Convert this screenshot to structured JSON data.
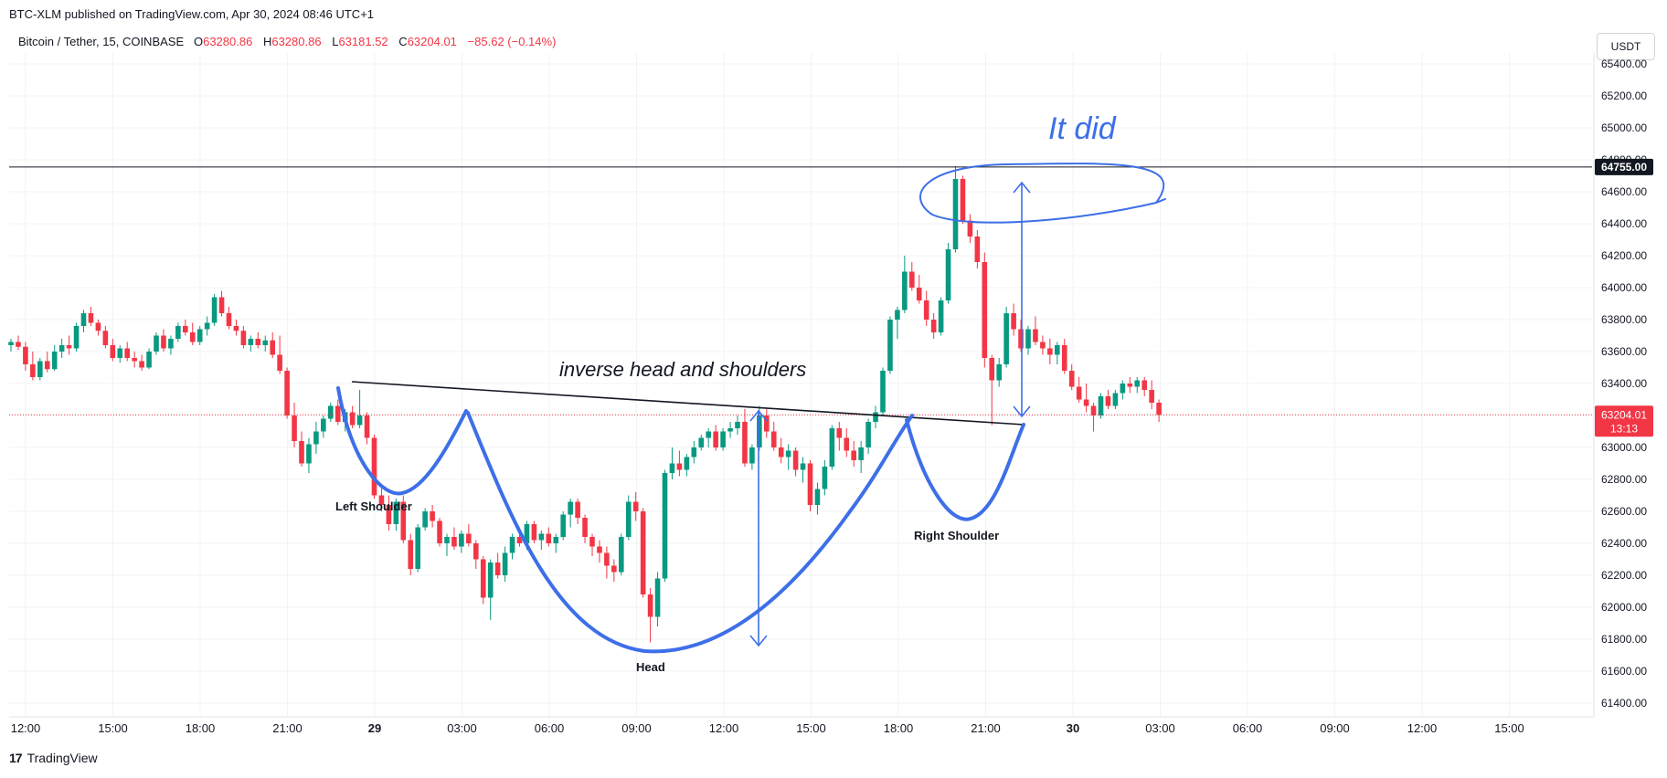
{
  "header": {
    "published": "BTC-XLM published on TradingView.com, Apr 30, 2024 08:46 UTC+1"
  },
  "symbol": {
    "name": "Bitcoin / Tether, 15, COINBASE",
    "open_label": "O",
    "open": "63280.86",
    "high_label": "H",
    "high": "63280.86",
    "low_label": "L",
    "low": "63181.52",
    "close_label": "C",
    "close": "63204.01",
    "change": "−85.62 (−0.14%)"
  },
  "currency_button": "USDT",
  "footer": {
    "brand": "TradingView",
    "logo": "17"
  },
  "colors": {
    "up": "#089981",
    "down": "#f23645",
    "drawing": "#3d6fe8",
    "trendline": "#131722",
    "price_tag": "#f23645"
  },
  "chart_data": {
    "type": "candlestick",
    "ylim": [
      61300,
      65450
    ],
    "y_ticks": [
      "65400.00",
      "65200.00",
      "65000.00",
      "64800.00",
      "64600.00",
      "64400.00",
      "64200.00",
      "64000.00",
      "63800.00",
      "63600.00",
      "63400.00",
      "63200.00",
      "63000.00",
      "62800.00",
      "62600.00",
      "62400.00",
      "62200.00",
      "62000.00",
      "61800.00",
      "61600.00",
      "61400.00"
    ],
    "x_ticks": [
      "12:00",
      "15:00",
      "18:00",
      "21:00",
      "29",
      "03:00",
      "06:00",
      "09:00",
      "12:00",
      "15:00",
      "18:00",
      "21:00",
      "30",
      "03:00",
      "06:00",
      "09:00",
      "12:00",
      "15:00"
    ],
    "horizontal_line": {
      "price": 64755,
      "label": "64755.00"
    },
    "last_price": {
      "price": 63204.01,
      "label": "63204.01",
      "countdown": "13:13"
    },
    "annotations": {
      "pattern": "inverse head and shoulders",
      "left_shoulder": "Left Shoulder",
      "head": "Head",
      "right_shoulder": "Right Shoulder",
      "result": "It did"
    },
    "candles": [
      [
        63640,
        63680,
        63600,
        63660
      ],
      [
        63660,
        63700,
        63610,
        63630
      ],
      [
        63630,
        63660,
        63480,
        63520
      ],
      [
        63520,
        63600,
        63420,
        63440
      ],
      [
        63440,
        63560,
        63420,
        63540
      ],
      [
        63540,
        63600,
        63470,
        63490
      ],
      [
        63490,
        63640,
        63480,
        63600
      ],
      [
        63600,
        63680,
        63560,
        63640
      ],
      [
        63640,
        63700,
        63580,
        63620
      ],
      [
        63620,
        63780,
        63600,
        63760
      ],
      [
        63760,
        63860,
        63720,
        63840
      ],
      [
        63840,
        63880,
        63760,
        63780
      ],
      [
        63780,
        63800,
        63700,
        63730
      ],
      [
        63730,
        63760,
        63620,
        63640
      ],
      [
        63640,
        63680,
        63540,
        63560
      ],
      [
        63560,
        63640,
        63530,
        63620
      ],
      [
        63620,
        63660,
        63540,
        63560
      ],
      [
        63560,
        63600,
        63500,
        63540
      ],
      [
        63540,
        63580,
        63480,
        63500
      ],
      [
        63500,
        63620,
        63490,
        63600
      ],
      [
        63600,
        63720,
        63580,
        63700
      ],
      [
        63700,
        63740,
        63600,
        63620
      ],
      [
        63620,
        63700,
        63580,
        63680
      ],
      [
        63680,
        63780,
        63660,
        63760
      ],
      [
        63760,
        63800,
        63700,
        63720
      ],
      [
        63720,
        63780,
        63640,
        63660
      ],
      [
        63660,
        63760,
        63640,
        63740
      ],
      [
        63740,
        63820,
        63700,
        63780
      ],
      [
        63780,
        63960,
        63760,
        63940
      ],
      [
        63940,
        63980,
        63820,
        63840
      ],
      [
        63840,
        63880,
        63740,
        63760
      ],
      [
        63760,
        63800,
        63700,
        63730
      ],
      [
        63730,
        63760,
        63620,
        63640
      ],
      [
        63640,
        63700,
        63600,
        63680
      ],
      [
        63680,
        63720,
        63620,
        63640
      ],
      [
        63640,
        63700,
        63600,
        63670
      ],
      [
        63670,
        63720,
        63560,
        63580
      ],
      [
        63580,
        63700,
        63460,
        63480
      ],
      [
        63480,
        63500,
        63180,
        63200
      ],
      [
        63200,
        63280,
        63000,
        63040
      ],
      [
        63040,
        63100,
        62880,
        62900
      ],
      [
        62900,
        63060,
        62840,
        63020
      ],
      [
        63020,
        63160,
        62960,
        63100
      ],
      [
        63100,
        63200,
        63060,
        63180
      ],
      [
        63180,
        63280,
        63160,
        63260
      ],
      [
        63260,
        63300,
        63140,
        63160
      ],
      [
        63160,
        63240,
        63100,
        63220
      ],
      [
        63220,
        63260,
        63120,
        63140
      ],
      [
        63140,
        63360,
        63120,
        63200
      ],
      [
        63200,
        63220,
        63020,
        63060
      ],
      [
        63060,
        63080,
        62680,
        62700
      ],
      [
        62700,
        62760,
        62600,
        62640
      ],
      [
        62640,
        62700,
        62480,
        62520
      ],
      [
        62520,
        62680,
        62480,
        62660
      ],
      [
        62660,
        62700,
        62400,
        62420
      ],
      [
        62420,
        62460,
        62200,
        62240
      ],
      [
        62240,
        62520,
        62220,
        62500
      ],
      [
        62500,
        62620,
        62480,
        62600
      ],
      [
        62600,
        62640,
        62500,
        62540
      ],
      [
        62540,
        62560,
        62380,
        62400
      ],
      [
        62400,
        62460,
        62320,
        62440
      ],
      [
        62440,
        62500,
        62360,
        62380
      ],
      [
        62380,
        62480,
        62340,
        62460
      ],
      [
        62460,
        62520,
        62380,
        62400
      ],
      [
        62400,
        62420,
        62240,
        62300
      ],
      [
        62300,
        62320,
        62020,
        62060
      ],
      [
        62060,
        62300,
        61920,
        62280
      ],
      [
        62280,
        62340,
        62180,
        62200
      ],
      [
        62200,
        62380,
        62160,
        62340
      ],
      [
        62340,
        62460,
        62300,
        62440
      ],
      [
        62440,
        62500,
        62380,
        62400
      ],
      [
        62400,
        62540,
        62360,
        62520
      ],
      [
        62520,
        62540,
        62400,
        62420
      ],
      [
        62420,
        62480,
        62360,
        62460
      ],
      [
        62460,
        62500,
        62380,
        62400
      ],
      [
        62400,
        62460,
        62340,
        62440
      ],
      [
        62440,
        62600,
        62420,
        62580
      ],
      [
        62580,
        62680,
        62500,
        62660
      ],
      [
        62660,
        62680,
        62520,
        62560
      ],
      [
        62560,
        62580,
        62400,
        62440
      ],
      [
        62440,
        62460,
        62320,
        62380
      ],
      [
        62380,
        62420,
        62280,
        62340
      ],
      [
        62340,
        62380,
        62180,
        62260
      ],
      [
        62260,
        62300,
        62160,
        62220
      ],
      [
        62220,
        62460,
        62200,
        62440
      ],
      [
        62440,
        62700,
        62420,
        62660
      ],
      [
        62660,
        62720,
        62540,
        62600
      ],
      [
        62600,
        62620,
        62060,
        62080
      ],
      [
        62080,
        62120,
        61780,
        61940
      ],
      [
        61940,
        62220,
        61880,
        62180
      ],
      [
        62180,
        62860,
        62160,
        62840
      ],
      [
        62840,
        63000,
        62800,
        62900
      ],
      [
        62900,
        62980,
        62820,
        62860
      ],
      [
        62860,
        62960,
        62820,
        62940
      ],
      [
        62940,
        63040,
        62900,
        63000
      ],
      [
        63000,
        63080,
        62980,
        63060
      ],
      [
        63060,
        63120,
        63000,
        63100
      ],
      [
        63100,
        63140,
        62980,
        63000
      ],
      [
        63000,
        63120,
        62980,
        63100
      ],
      [
        63100,
        63160,
        63060,
        63120
      ],
      [
        63120,
        63200,
        63080,
        63160
      ],
      [
        63160,
        63240,
        62880,
        62900
      ],
      [
        62900,
        63020,
        62860,
        63000
      ],
      [
        63000,
        63260,
        62980,
        63200
      ],
      [
        63200,
        63240,
        63060,
        63100
      ],
      [
        63100,
        63160,
        62980,
        63000
      ],
      [
        63000,
        63060,
        62900,
        62940
      ],
      [
        62940,
        63020,
        62860,
        62980
      ],
      [
        62980,
        63000,
        62820,
        62860
      ],
      [
        62860,
        62940,
        62780,
        62900
      ],
      [
        62900,
        62920,
        62600,
        62640
      ],
      [
        62640,
        62780,
        62580,
        62740
      ],
      [
        62740,
        62920,
        62700,
        62880
      ],
      [
        62880,
        63140,
        62860,
        63120
      ],
      [
        63120,
        63160,
        62980,
        63060
      ],
      [
        63060,
        63120,
        62940,
        62980
      ],
      [
        62980,
        63040,
        62880,
        62920
      ],
      [
        62920,
        63040,
        62840,
        63000
      ],
      [
        63000,
        63180,
        62960,
        63160
      ],
      [
        63160,
        63260,
        63120,
        63220
      ],
      [
        63220,
        63500,
        63200,
        63480
      ],
      [
        63480,
        63820,
        63460,
        63800
      ],
      [
        63800,
        63880,
        63680,
        63860
      ],
      [
        63860,
        64200,
        63840,
        64100
      ],
      [
        64100,
        64160,
        63980,
        64000
      ],
      [
        64000,
        64080,
        63900,
        63920
      ],
      [
        63920,
        63980,
        63760,
        63800
      ],
      [
        63800,
        63840,
        63680,
        63720
      ],
      [
        63720,
        63940,
        63700,
        63920
      ],
      [
        63920,
        64280,
        63900,
        64240
      ],
      [
        64240,
        64760,
        64220,
        64680
      ],
      [
        64680,
        64700,
        64400,
        64420
      ],
      [
        64420,
        64460,
        64280,
        64320
      ],
      [
        64320,
        64360,
        64120,
        64160
      ],
      [
        64160,
        64220,
        63500,
        63560
      ],
      [
        63560,
        63580,
        63140,
        63420
      ],
      [
        63420,
        63560,
        63380,
        63520
      ],
      [
        63520,
        63880,
        63500,
        63840
      ],
      [
        63840,
        63900,
        63700,
        63740
      ],
      [
        63740,
        63800,
        63600,
        63620
      ],
      [
        63620,
        63760,
        63580,
        63740
      ],
      [
        63740,
        63820,
        63640,
        63660
      ],
      [
        63660,
        63700,
        63580,
        63620
      ],
      [
        63620,
        63680,
        63520,
        63580
      ],
      [
        63580,
        63660,
        63520,
        63640
      ],
      [
        63640,
        63680,
        63460,
        63480
      ],
      [
        63480,
        63520,
        63360,
        63380
      ],
      [
        63380,
        63440,
        63280,
        63300
      ],
      [
        63300,
        63400,
        63220,
        63260
      ],
      [
        63260,
        63280,
        63100,
        63200
      ],
      [
        63200,
        63340,
        63180,
        63320
      ],
      [
        63320,
        63360,
        63240,
        63260
      ],
      [
        63260,
        63360,
        63240,
        63340
      ],
      [
        63340,
        63420,
        63300,
        63400
      ],
      [
        63400,
        63440,
        63340,
        63380
      ],
      [
        63380,
        63440,
        63340,
        63420
      ],
      [
        63420,
        63440,
        63320,
        63360
      ],
      [
        63360,
        63420,
        63240,
        63280
      ],
      [
        63280,
        63300,
        63160,
        63204
      ]
    ]
  }
}
